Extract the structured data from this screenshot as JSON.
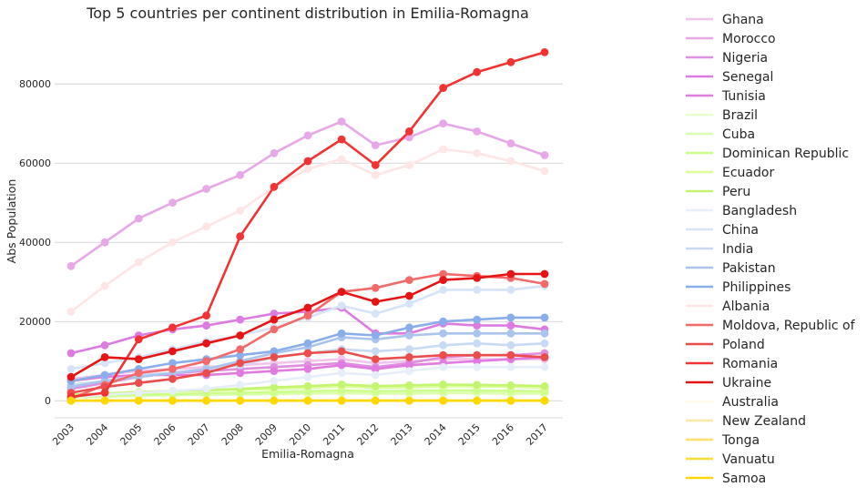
{
  "chart_data": {
    "type": "line",
    "title": "Top 5 countries per continent distribution in Emilia-Romagna",
    "xlabel": "Emilia-Romagna",
    "ylabel": "Abs Population",
    "categories": [
      "2003",
      "2004",
      "2005",
      "2006",
      "2007",
      "2008",
      "2009",
      "2010",
      "2011",
      "2012",
      "2013",
      "2014",
      "2015",
      "2016",
      "2017"
    ],
    "ylim": [
      -5000,
      92000
    ],
    "yticks": [
      0,
      20000,
      40000,
      60000,
      80000
    ],
    "grid": "horizontal",
    "legend_position": "right",
    "series": [
      {
        "name": "Ghana",
        "color": "#f2c4ec",
        "values": [
          5500,
          6500,
          7500,
          8000,
          8500,
          9000,
          9500,
          10000,
          10500,
          9500,
          10000,
          10500,
          10500,
          10500,
          10500
        ]
      },
      {
        "name": "Morocco",
        "color": "#e6a8e6",
        "values": [
          34000,
          40000,
          46000,
          50000,
          53500,
          57000,
          62500,
          67000,
          70500,
          64500,
          66500,
          70000,
          68000,
          65000,
          62000
        ]
      },
      {
        "name": "Nigeria",
        "color": "#df8fdf",
        "values": [
          3000,
          4500,
          6000,
          7000,
          7500,
          8000,
          8500,
          9000,
          9500,
          8500,
          9500,
          11000,
          11500,
          11500,
          12000
        ]
      },
      {
        "name": "Senegal",
        "color": "#dd7ce0",
        "values": [
          12000,
          14000,
          16500,
          18000,
          19000,
          20500,
          22000,
          22500,
          23500,
          17000,
          17000,
          19500,
          19000,
          19000,
          18000
        ]
      },
      {
        "name": "Tunisia",
        "color": "#e07be0",
        "values": [
          5000,
          6000,
          6500,
          6500,
          6500,
          7000,
          7500,
          8000,
          9000,
          8000,
          9000,
          9500,
          10000,
          10500,
          11000
        ]
      },
      {
        "name": "Brazil",
        "color": "#e9ffcc",
        "values": [
          800,
          1000,
          1200,
          1400,
          1500,
          1600,
          1800,
          2000,
          2200,
          2000,
          2100,
          2200,
          2200,
          2200,
          2100
        ]
      },
      {
        "name": "Cuba",
        "color": "#ddffb0",
        "values": [
          900,
          1100,
          1300,
          1400,
          1500,
          1600,
          1700,
          1800,
          1900,
          1800,
          1800,
          1900,
          1900,
          1800,
          1800
        ]
      },
      {
        "name": "Dominican Republic",
        "color": "#ccff8c",
        "values": [
          1000,
          1200,
          1500,
          1700,
          1900,
          2000,
          2200,
          2400,
          2600,
          2400,
          2500,
          2600,
          2600,
          2500,
          2400
        ]
      },
      {
        "name": "Ecuador",
        "color": "#ddff99",
        "values": [
          1200,
          1600,
          2000,
          2400,
          2600,
          2800,
          3000,
          3300,
          3600,
          3300,
          3400,
          3600,
          3600,
          3500,
          3300
        ]
      },
      {
        "name": "Peru",
        "color": "#c4f570",
        "values": [
          1500,
          1800,
          2200,
          2500,
          2700,
          3000,
          3400,
          3700,
          4100,
          3700,
          3900,
          4100,
          4000,
          3900,
          3700
        ]
      },
      {
        "name": "Bangladesh",
        "color": "#e6eef9",
        "values": [
          1000,
          1500,
          2000,
          2500,
          3000,
          4000,
          5000,
          6000,
          7000,
          6500,
          7500,
          8500,
          8500,
          8500,
          8500
        ]
      },
      {
        "name": "China",
        "color": "#d6e4f7",
        "values": [
          8000,
          9500,
          11000,
          13000,
          15000,
          16500,
          18500,
          21000,
          24000,
          22000,
          24500,
          28000,
          28000,
          28000,
          29000
        ]
      },
      {
        "name": "India",
        "color": "#c9daf5",
        "values": [
          4000,
          5000,
          6500,
          7000,
          8000,
          9000,
          11000,
          12000,
          13000,
          12500,
          13000,
          14000,
          14500,
          14000,
          14500
        ]
      },
      {
        "name": "Pakistan",
        "color": "#abc4ee",
        "values": [
          3500,
          5000,
          6000,
          7000,
          8000,
          10000,
          12000,
          13500,
          16000,
          15500,
          16500,
          17000,
          17000,
          17000,
          17000
        ]
      },
      {
        "name": "Philippines",
        "color": "#8aaeea",
        "values": [
          5000,
          6500,
          8000,
          9500,
          10500,
          11500,
          12500,
          14500,
          17000,
          16500,
          18500,
          20000,
          20500,
          21000,
          21000
        ]
      },
      {
        "name": "Albania",
        "color": "#ffe6e6",
        "values": [
          22500,
          29000,
          35000,
          40000,
          44000,
          48000,
          54000,
          58500,
          61000,
          57000,
          59500,
          63500,
          62500,
          60500,
          58000
        ]
      },
      {
        "name": "Moldova, Republic of",
        "color": "#f26a6a",
        "values": [
          500,
          4000,
          7000,
          8000,
          10000,
          13000,
          18000,
          21500,
          27500,
          28500,
          30500,
          32000,
          31500,
          31000,
          29500
        ]
      },
      {
        "name": "Poland",
        "color": "#eb4d4d",
        "values": [
          2000,
          3500,
          4500,
          5500,
          7000,
          9500,
          11000,
          12000,
          12500,
          10500,
          11000,
          11500,
          11500,
          11500,
          11000
        ]
      },
      {
        "name": "Romania",
        "color": "#f23333",
        "values": [
          1000,
          2000,
          15500,
          18500,
          21500,
          41500,
          54000,
          60500,
          66000,
          59500,
          68000,
          79000,
          83000,
          85500,
          88000
        ]
      },
      {
        "name": "Ukraine",
        "color": "#e61515",
        "values": [
          6000,
          11000,
          10500,
          12500,
          14500,
          16500,
          20500,
          23500,
          27500,
          25000,
          26500,
          30500,
          31000,
          32000,
          32000
        ]
      },
      {
        "name": "Australia",
        "color": "#fffbe8",
        "values": [
          0,
          0,
          0,
          0,
          0,
          0,
          0,
          0,
          0,
          0,
          0,
          0,
          0,
          0,
          0
        ]
      },
      {
        "name": "New Zealand",
        "color": "#ffe9a0",
        "values": [
          0,
          0,
          0,
          0,
          0,
          0,
          0,
          0,
          0,
          0,
          0,
          0,
          0,
          0,
          0
        ]
      },
      {
        "name": "Tonga",
        "color": "#ffdf66",
        "values": [
          0,
          0,
          0,
          0,
          0,
          0,
          0,
          0,
          0,
          0,
          0,
          0,
          0,
          0,
          0
        ]
      },
      {
        "name": "Vanuatu",
        "color": "#ffd933",
        "values": [
          0,
          0,
          0,
          0,
          0,
          0,
          0,
          0,
          0,
          0,
          0,
          0,
          0,
          0,
          0
        ]
      },
      {
        "name": "Samoa",
        "color": "#ffd700",
        "values": [
          0,
          0,
          0,
          0,
          0,
          0,
          0,
          0,
          0,
          0,
          0,
          0,
          0,
          0,
          0
        ]
      }
    ]
  }
}
